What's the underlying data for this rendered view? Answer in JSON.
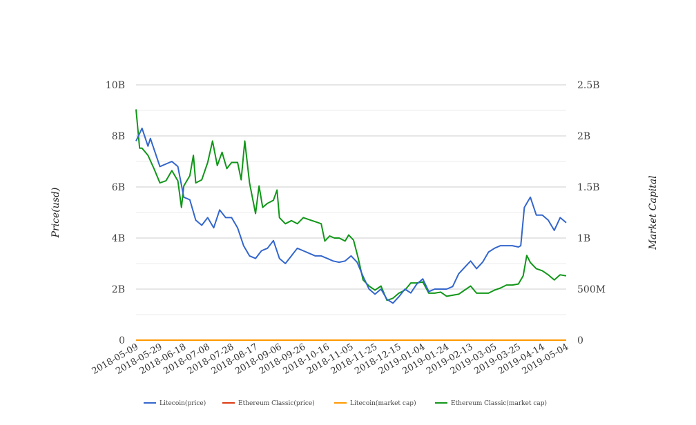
{
  "chart_data": {
    "type": "line",
    "title": "",
    "x_unit": "days since 2018-05-09",
    "xlim": [
      0,
      360
    ],
    "x_tick_labels": [
      "2018-05-09",
      "2018-05-29",
      "2018-06-18",
      "2018-07-08",
      "2018-07-28",
      "2018-08-17",
      "2018-09-06",
      "2018-09-26",
      "2018-10-16",
      "2018-11-05",
      "2018-11-25",
      "2018-12-15",
      "2019-01-04",
      "2019-01-24",
      "2019-02-13",
      "2019-03-05",
      "2019-03-25",
      "2019-04-14",
      "2019-05-04"
    ],
    "ylabel_left": "Price(usd)",
    "ylabel_right": "Market Capital",
    "ylim_left": [
      0,
      10000000000
    ],
    "ylim_right": [
      0,
      2500000000
    ],
    "y_ticks_left": [
      "0",
      "2B",
      "4B",
      "6B",
      "8B",
      "10B"
    ],
    "y_ticks_right": [
      "0",
      "500M",
      "1B",
      "1.5B",
      "2B",
      "2.5B"
    ],
    "grid": true,
    "legend_position": "bottom",
    "series": [
      {
        "name": "Litecoin(price)",
        "color": "#3366cc",
        "axis": "left",
        "x": [
          0,
          5,
          10,
          12,
          20,
          30,
          35,
          40,
          45,
          50,
          55,
          60,
          65,
          70,
          75,
          80,
          85,
          90,
          95,
          100,
          105,
          110,
          115,
          120,
          125,
          130,
          135,
          140,
          145,
          150,
          155,
          160,
          165,
          170,
          175,
          180,
          185,
          190,
          195,
          200,
          205,
          210,
          215,
          220,
          225,
          230,
          235,
          240,
          245,
          250,
          255,
          260,
          265,
          270,
          275,
          280,
          285,
          290,
          295,
          300,
          305,
          310,
          315,
          320,
          322,
          325,
          330,
          335,
          340,
          345,
          350,
          355,
          360
        ],
        "values_B": [
          7.8,
          8.3,
          7.6,
          7.9,
          6.8,
          7.0,
          6.8,
          5.6,
          5.5,
          4.7,
          4.5,
          4.8,
          4.4,
          5.1,
          4.8,
          4.8,
          4.4,
          3.7,
          3.3,
          3.2,
          3.5,
          3.6,
          3.9,
          3.2,
          3.0,
          3.3,
          3.6,
          3.5,
          3.4,
          3.3,
          3.3,
          3.2,
          3.1,
          3.05,
          3.1,
          3.3,
          3.05,
          2.5,
          2.0,
          1.8,
          2.0,
          1.6,
          1.45,
          1.7,
          2.0,
          1.85,
          2.2,
          2.4,
          1.9,
          2.0,
          2.0,
          2.0,
          2.1,
          2.6,
          2.85,
          3.1,
          2.8,
          3.05,
          3.45,
          3.6,
          3.7,
          3.7,
          3.7,
          3.65,
          3.7,
          5.2,
          5.6,
          4.9,
          4.9,
          4.7,
          4.3,
          4.8,
          4.6
        ]
      },
      {
        "name": "Ethereum Classic(price)",
        "color": "#dc3912",
        "axis": "left",
        "x": [
          0,
          360
        ],
        "values_B": [
          0,
          0
        ]
      },
      {
        "name": "Litecoin(market cap)",
        "color": "#ff9900",
        "axis": "left",
        "x": [
          0,
          360
        ],
        "values_B": [
          0,
          0
        ]
      },
      {
        "name": "Ethereum Classic(market cap)",
        "color": "#109618",
        "axis": "right",
        "x": [
          0,
          3,
          5,
          10,
          15,
          20,
          25,
          30,
          35,
          38,
          40,
          45,
          48,
          50,
          55,
          60,
          64,
          68,
          72,
          76,
          80,
          85,
          88,
          91,
          95,
          100,
          103,
          106,
          110,
          115,
          118,
          120,
          125,
          130,
          135,
          140,
          145,
          150,
          155,
          158,
          162,
          166,
          170,
          175,
          178,
          182,
          186,
          190,
          195,
          200,
          205,
          210,
          215,
          220,
          225,
          230,
          235,
          240,
          245,
          250,
          255,
          260,
          265,
          270,
          275,
          280,
          285,
          290,
          295,
          300,
          305,
          310,
          315,
          320,
          324,
          327,
          330,
          335,
          340,
          345,
          350,
          355,
          360
        ],
        "values_B": [
          2.26,
          1.88,
          1.88,
          1.81,
          1.68,
          1.54,
          1.56,
          1.66,
          1.56,
          1.3,
          1.51,
          1.61,
          1.81,
          1.54,
          1.57,
          1.74,
          1.95,
          1.71,
          1.84,
          1.68,
          1.74,
          1.74,
          1.57,
          1.95,
          1.54,
          1.24,
          1.51,
          1.3,
          1.34,
          1.37,
          1.47,
          1.2,
          1.14,
          1.17,
          1.14,
          1.2,
          1.18,
          1.16,
          1.14,
          0.97,
          1.02,
          1.0,
          1.0,
          0.97,
          1.03,
          0.98,
          0.8,
          0.59,
          0.53,
          0.49,
          0.53,
          0.39,
          0.41,
          0.46,
          0.49,
          0.56,
          0.56,
          0.57,
          0.46,
          0.46,
          0.47,
          0.43,
          0.44,
          0.45,
          0.49,
          0.53,
          0.46,
          0.46,
          0.46,
          0.49,
          0.51,
          0.54,
          0.54,
          0.55,
          0.63,
          0.83,
          0.76,
          0.7,
          0.68,
          0.64,
          0.59,
          0.64,
          0.63
        ]
      }
    ]
  }
}
